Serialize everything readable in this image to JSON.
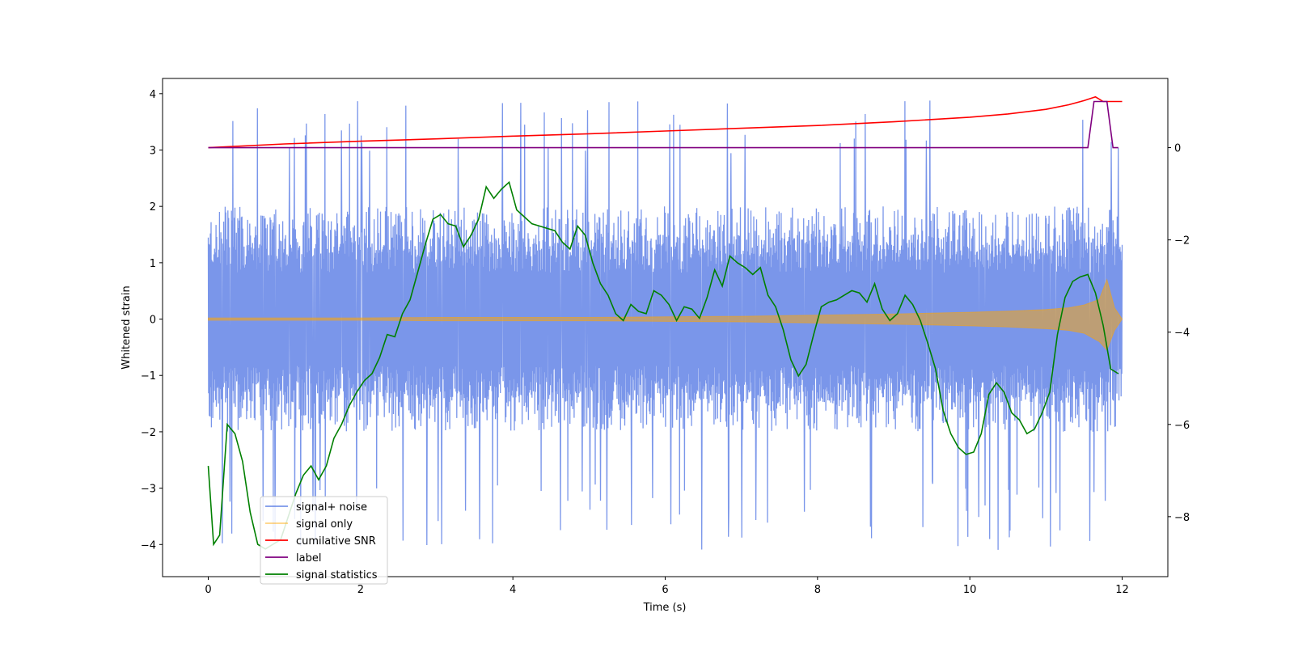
{
  "chart_data": {
    "type": "line",
    "title": "",
    "xlabel": "Time (s)",
    "ylabel": "Whitened strain",
    "y2label": "",
    "xlim": [
      -0.6,
      12.6
    ],
    "ylim": [
      -4.57,
      4.27
    ],
    "y2lim": [
      -9.3,
      1.5
    ],
    "xticks": [
      0,
      2,
      4,
      6,
      8,
      10,
      12
    ],
    "xtick_labels": [
      "0",
      "2",
      "4",
      "6",
      "8",
      "10",
      "12"
    ],
    "yticks": [
      4,
      3,
      2,
      1,
      0,
      -1,
      -2,
      -3,
      -4
    ],
    "ytick_labels": [
      "4",
      "3",
      "2",
      "1",
      "0",
      "−1",
      "−2",
      "−3",
      "−4"
    ],
    "y2ticks": [
      0,
      -2,
      -4,
      -6,
      -8
    ],
    "y2tick_labels": [
      "0",
      "−2",
      "−4",
      "−6",
      "−8"
    ],
    "legend_position": "lower-left",
    "series": [
      {
        "name": "signal+ noise",
        "axis": "left",
        "color": "#4169e1",
        "opacity": 0.7,
        "style": "dense noise",
        "x_range": [
          0,
          12
        ],
        "band": [
          -1.5,
          1.5
        ],
        "spike_min": -4.1,
        "spike_max": 3.9
      },
      {
        "name": "signal only",
        "axis": "left",
        "color": "#ffa500",
        "opacity": 0.5,
        "style": "chirp envelope",
        "x": [
          0,
          1,
          2,
          3,
          4,
          5,
          6,
          7,
          8,
          9,
          10,
          10.5,
          11,
          11.3,
          11.5,
          11.7,
          11.8,
          11.9,
          12
        ],
        "upper": [
          0.02,
          0.02,
          0.02,
          0.03,
          0.03,
          0.03,
          0.04,
          0.05,
          0.07,
          0.09,
          0.12,
          0.14,
          0.17,
          0.2,
          0.25,
          0.35,
          0.7,
          0.2,
          0.0
        ],
        "lower": [
          -0.02,
          -0.02,
          -0.02,
          -0.03,
          -0.03,
          -0.03,
          -0.04,
          -0.05,
          -0.07,
          -0.09,
          -0.12,
          -0.14,
          -0.17,
          -0.2,
          -0.25,
          -0.4,
          -0.55,
          -0.2,
          0.0
        ]
      },
      {
        "name": "cumilative SNR",
        "axis": "right",
        "color": "#ff0000",
        "x": [
          0,
          1,
          2,
          3,
          4,
          5,
          6,
          7,
          8,
          9,
          10,
          10.5,
          11,
          11.3,
          11.5,
          11.65,
          11.75,
          11.85,
          12
        ],
        "values": [
          0.0,
          0.08,
          0.14,
          0.19,
          0.25,
          0.3,
          0.36,
          0.42,
          0.48,
          0.56,
          0.66,
          0.73,
          0.83,
          0.93,
          1.02,
          1.1,
          1.0,
          1.0,
          1.0
        ]
      },
      {
        "name": "label",
        "axis": "right",
        "color": "#800080",
        "x": [
          0,
          11.55,
          11.63,
          11.8,
          11.88,
          11.95
        ],
        "values": [
          0,
          0,
          1,
          1,
          0,
          0
        ]
      },
      {
        "name": "signal statistics",
        "axis": "right",
        "color": "#008000",
        "x": [
          0,
          0.07,
          0.15,
          0.25,
          0.35,
          0.45,
          0.55,
          0.65,
          0.75,
          0.85,
          0.95,
          1.05,
          1.15,
          1.25,
          1.35,
          1.45,
          1.55,
          1.65,
          1.75,
          1.85,
          1.95,
          2.05,
          2.15,
          2.25,
          2.35,
          2.45,
          2.55,
          2.65,
          2.75,
          2.85,
          2.95,
          3.05,
          3.15,
          3.25,
          3.35,
          3.45,
          3.55,
          3.65,
          3.75,
          3.85,
          3.95,
          4.05,
          4.15,
          4.25,
          4.35,
          4.45,
          4.55,
          4.65,
          4.75,
          4.85,
          4.95,
          5.05,
          5.15,
          5.25,
          5.35,
          5.45,
          5.55,
          5.65,
          5.75,
          5.85,
          5.95,
          6.05,
          6.15,
          6.25,
          6.35,
          6.45,
          6.55,
          6.65,
          6.75,
          6.85,
          6.95,
          7.05,
          7.15,
          7.25,
          7.35,
          7.45,
          7.55,
          7.65,
          7.75,
          7.85,
          7.95,
          8.05,
          8.15,
          8.25,
          8.35,
          8.45,
          8.55,
          8.65,
          8.75,
          8.85,
          8.95,
          9.05,
          9.15,
          9.25,
          9.35,
          9.45,
          9.55,
          9.65,
          9.75,
          9.85,
          9.95,
          10.05,
          10.15,
          10.25,
          10.35,
          10.45,
          10.55,
          10.65,
          10.75,
          10.85,
          10.95,
          11.05,
          11.15,
          11.25,
          11.35,
          11.45,
          11.55,
          11.65,
          11.75,
          11.85,
          11.95
        ],
        "values": [
          -6.9,
          -8.6,
          -8.4,
          -6.0,
          -6.2,
          -6.8,
          -7.9,
          -8.6,
          -8.7,
          -8.6,
          -8.5,
          -8.0,
          -7.5,
          -7.1,
          -6.9,
          -7.2,
          -6.9,
          -6.3,
          -6.0,
          -5.6,
          -5.3,
          -5.05,
          -4.9,
          -4.55,
          -4.05,
          -4.1,
          -3.6,
          -3.3,
          -2.7,
          -2.1,
          -1.55,
          -1.45,
          -1.65,
          -1.7,
          -2.15,
          -1.9,
          -1.55,
          -0.85,
          -1.1,
          -0.9,
          -0.75,
          -1.35,
          -1.5,
          -1.65,
          -1.7,
          -1.75,
          -1.8,
          -2.05,
          -2.2,
          -1.7,
          -1.9,
          -2.5,
          -2.95,
          -3.2,
          -3.6,
          -3.75,
          -3.4,
          -3.55,
          -3.6,
          -3.1,
          -3.2,
          -3.4,
          -3.75,
          -3.45,
          -3.5,
          -3.7,
          -3.25,
          -2.65,
          -3.0,
          -2.35,
          -2.5,
          -2.6,
          -2.75,
          -2.6,
          -3.2,
          -3.45,
          -3.95,
          -4.6,
          -4.95,
          -4.7,
          -4.05,
          -3.45,
          -3.35,
          -3.3,
          -3.2,
          -3.1,
          -3.15,
          -3.35,
          -2.95,
          -3.5,
          -3.75,
          -3.6,
          -3.2,
          -3.4,
          -3.75,
          -4.25,
          -4.8,
          -5.7,
          -6.2,
          -6.5,
          -6.65,
          -6.6,
          -6.2,
          -5.35,
          -5.1,
          -5.3,
          -5.75,
          -5.9,
          -6.2,
          -6.1,
          -5.75,
          -5.3,
          -4.05,
          -3.25,
          -2.9,
          -2.8,
          -2.75,
          -3.15,
          -3.85,
          -4.8,
          -4.9
        ]
      }
    ]
  }
}
